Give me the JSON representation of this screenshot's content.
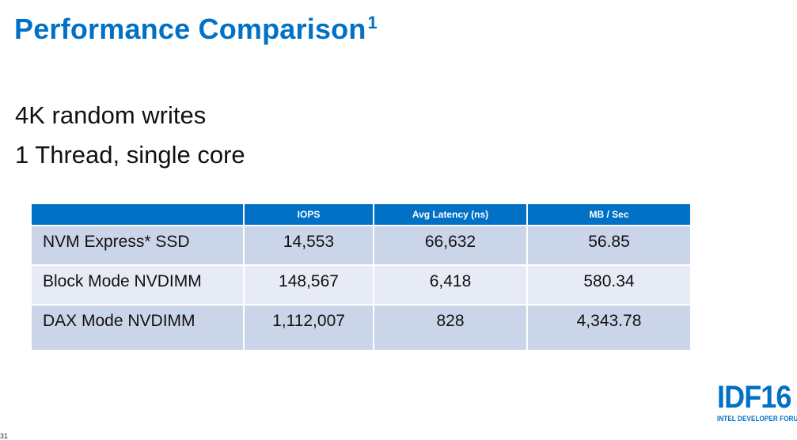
{
  "slide": {
    "title": "Performance Comparison",
    "title_footnote": "1",
    "line1": "4K random writes",
    "line2": "1 Thread, single core",
    "page_number": "31"
  },
  "table": {
    "headers": [
      "",
      "IOPS",
      "Avg Latency (ns)",
      "MB / Sec"
    ],
    "rows": [
      [
        "NVM Express* SSD",
        "14,553",
        "66,632",
        "56.85"
      ],
      [
        "Block Mode NVDIMM",
        "148,567",
        "6,418",
        "580.34"
      ],
      [
        "DAX Mode NVDIMM",
        "1,112,007",
        "828",
        "4,343.78"
      ]
    ]
  },
  "logo": {
    "big_text": "IDF16",
    "small_text": "INTEL DEVELOPER FORUM"
  },
  "colors": {
    "accent": "#0071c5",
    "row_dark": "#cbd5ea",
    "row_light": "#e7ebf5"
  }
}
